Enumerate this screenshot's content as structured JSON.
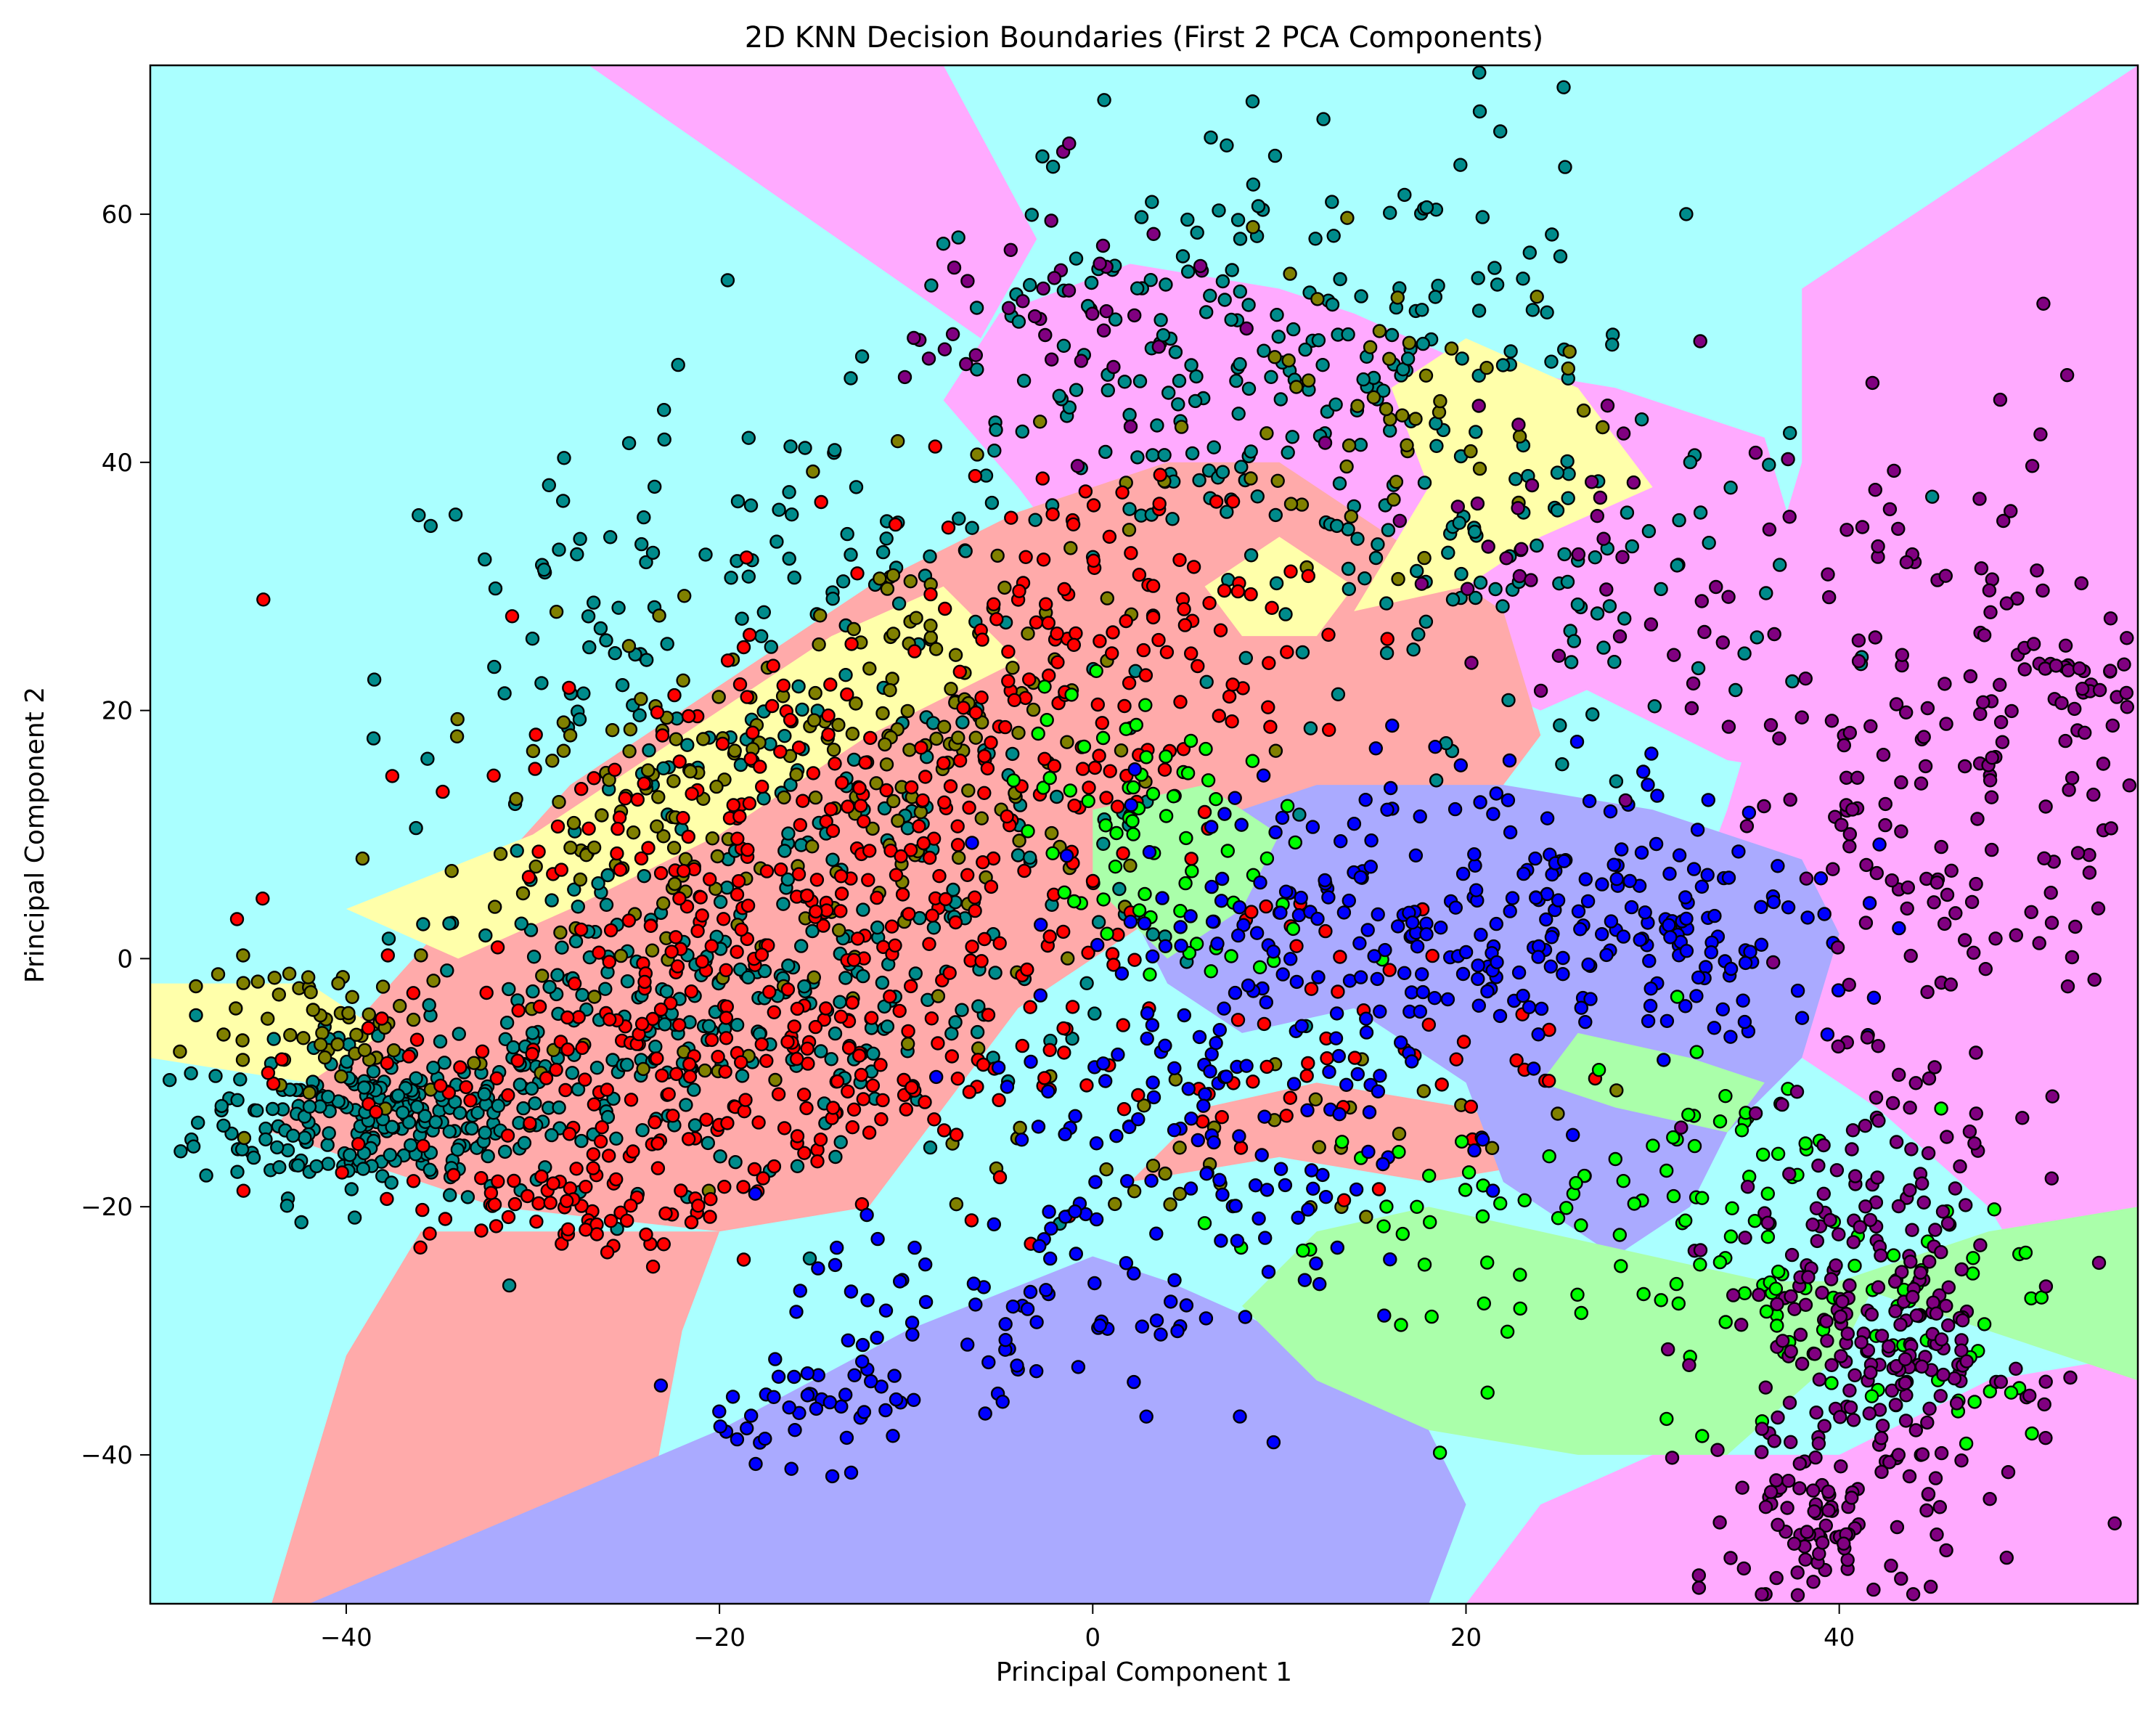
{
  "chart_data": {
    "type": "scatter",
    "title": "2D KNN Decision Boundaries (First 2 PCA Components)",
    "xlabel": "Principal Component 1",
    "ylabel": "Principal Component 2",
    "xlim": [
      -50.5,
      56.0
    ],
    "ylim": [
      -52.0,
      72.0
    ],
    "x_ticks": [
      -40,
      -20,
      0,
      20,
      40
    ],
    "y_ticks": [
      -40,
      -20,
      0,
      20,
      40,
      60
    ],
    "x_tick_labels": [
      "−40",
      "−20",
      "0",
      "20",
      "40"
    ],
    "y_tick_labels": [
      "−40",
      "−20",
      "0",
      "20",
      "40",
      "60"
    ],
    "grid": false,
    "legend": "none",
    "marker_edge_color": "#000000",
    "classes": [
      {
        "name": "class-teal",
        "point_color": "#008b8b",
        "region_color": "#aaffff"
      },
      {
        "name": "class-olive",
        "point_color": "#808000",
        "region_color": "#ffffaa"
      },
      {
        "name": "class-red",
        "point_color": "#ff0000",
        "region_color": "#ffaaaa"
      },
      {
        "name": "class-green",
        "point_color": "#00ff00",
        "region_color": "#aaffaa"
      },
      {
        "name": "class-blue",
        "point_color": "#0000ff",
        "region_color": "#aaaaff"
      },
      {
        "name": "class-purple",
        "point_color": "#800080",
        "region_color": "#ffaaff"
      }
    ],
    "regions": [
      {
        "class": "class-teal",
        "polygon": [
          [
            -50.5,
            72
          ],
          [
            56,
            72
          ],
          [
            56,
            -52
          ],
          [
            -50.5,
            -52
          ]
        ]
      },
      {
        "class": "class-purple",
        "polygon": [
          [
            -27,
            72
          ],
          [
            -8,
            72
          ],
          [
            -3,
            58
          ],
          [
            -6,
            50
          ]
        ]
      },
      {
        "class": "class-purple",
        "polygon": [
          [
            2,
            56
          ],
          [
            10,
            54
          ],
          [
            14,
            52
          ],
          [
            20,
            48
          ],
          [
            28,
            46
          ],
          [
            36,
            42
          ],
          [
            38,
            32
          ],
          [
            30,
            24
          ],
          [
            24,
            20
          ],
          [
            18,
            24
          ],
          [
            12,
            30
          ],
          [
            6,
            28
          ],
          [
            0,
            30
          ],
          [
            -4,
            38
          ],
          [
            -8,
            45
          ],
          [
            -5,
            52
          ]
        ]
      },
      {
        "class": "class-purple",
        "polygon": [
          [
            56,
            72
          ],
          [
            38,
            54
          ],
          [
            38,
            40
          ],
          [
            36,
            30
          ],
          [
            26,
            22
          ],
          [
            34,
            16
          ],
          [
            42,
            14
          ],
          [
            48,
            8
          ],
          [
            56,
            8
          ]
        ]
      },
      {
        "class": "class-purple",
        "polygon": [
          [
            38,
            32
          ],
          [
            56,
            50
          ],
          [
            56,
            -20
          ],
          [
            50,
            -25
          ],
          [
            48,
            -20
          ],
          [
            42,
            -12
          ],
          [
            36,
            -6
          ],
          [
            32,
            4
          ],
          [
            34,
            12
          ]
        ]
      },
      {
        "class": "class-purple",
        "polygon": [
          [
            20,
            -52
          ],
          [
            56,
            -52
          ],
          [
            56,
            -32
          ],
          [
            48,
            -34
          ],
          [
            40,
            -40
          ],
          [
            30,
            -40
          ],
          [
            24,
            -44
          ]
        ]
      },
      {
        "class": "class-red",
        "polygon": [
          [
            -44,
            -52
          ],
          [
            -30,
            -52
          ],
          [
            -24,
            -46
          ],
          [
            -22,
            -30
          ],
          [
            -20,
            -22
          ],
          [
            -28,
            -22
          ],
          [
            -36,
            -22
          ],
          [
            -40,
            -32
          ]
        ]
      },
      {
        "class": "class-red",
        "polygon": [
          [
            -32,
            -20
          ],
          [
            -44,
            -14
          ],
          [
            -40,
            -6
          ],
          [
            -34,
            4
          ],
          [
            -28,
            14
          ],
          [
            -20,
            22
          ],
          [
            -12,
            30
          ],
          [
            -4,
            36
          ],
          [
            4,
            40
          ],
          [
            10,
            40
          ],
          [
            16,
            34
          ],
          [
            22,
            28
          ],
          [
            24,
            18
          ],
          [
            20,
            10
          ],
          [
            12,
            8
          ],
          [
            4,
            4
          ],
          [
            -4,
            -4
          ],
          [
            -8,
            -12
          ],
          [
            -12,
            -20
          ],
          [
            -20,
            -22
          ]
        ]
      },
      {
        "class": "class-red",
        "polygon": [
          [
            2,
            -18
          ],
          [
            10,
            -16
          ],
          [
            18,
            -18
          ],
          [
            26,
            -16
          ],
          [
            20,
            -12
          ],
          [
            12,
            -10
          ],
          [
            6,
            -12
          ]
        ]
      },
      {
        "class": "class-olive",
        "polygon": [
          [
            -50.5,
            -2
          ],
          [
            -42,
            -2
          ],
          [
            -38,
            -6
          ],
          [
            -42,
            -10
          ],
          [
            -50.5,
            -8
          ]
        ]
      },
      {
        "class": "class-olive",
        "polygon": [
          [
            -40,
            4
          ],
          [
            -30,
            10
          ],
          [
            -22,
            18
          ],
          [
            -14,
            26
          ],
          [
            -8,
            30
          ],
          [
            -4,
            24
          ],
          [
            -12,
            18
          ],
          [
            -20,
            10
          ],
          [
            -28,
            4
          ],
          [
            -34,
            0
          ]
        ]
      },
      {
        "class": "class-olive",
        "polygon": [
          [
            14,
            28
          ],
          [
            18,
            38
          ],
          [
            16,
            46
          ],
          [
            20,
            50
          ],
          [
            26,
            46
          ],
          [
            30,
            38
          ],
          [
            24,
            34
          ],
          [
            20,
            30
          ]
        ]
      },
      {
        "class": "class-olive",
        "polygon": [
          [
            6,
            30
          ],
          [
            10,
            34
          ],
          [
            14,
            30
          ],
          [
            12,
            26
          ],
          [
            8,
            26
          ]
        ]
      },
      {
        "class": "class-olive",
        "polygon": [
          [
            18,
            -4
          ],
          [
            24,
            -6
          ],
          [
            28,
            -4
          ],
          [
            26,
            0
          ],
          [
            20,
            0
          ]
        ]
      },
      {
        "class": "class-blue",
        "polygon": [
          [
            -42,
            -52
          ],
          [
            -20,
            -38
          ],
          [
            -10,
            -30
          ],
          [
            0,
            -24
          ],
          [
            4,
            -26
          ],
          [
            10,
            -30
          ],
          [
            14,
            -32
          ],
          [
            18,
            -38
          ],
          [
            20,
            -44
          ],
          [
            18,
            -52
          ]
        ]
      },
      {
        "class": "class-blue",
        "polygon": [
          [
            4,
            10
          ],
          [
            12,
            14
          ],
          [
            22,
            14
          ],
          [
            30,
            12
          ],
          [
            38,
            8
          ],
          [
            40,
            2
          ],
          [
            38,
            -8
          ],
          [
            34,
            -14
          ],
          [
            32,
            -20
          ],
          [
            28,
            -24
          ],
          [
            22,
            -18
          ],
          [
            20,
            -10
          ],
          [
            14,
            -4
          ],
          [
            8,
            -6
          ],
          [
            4,
            -2
          ],
          [
            2,
            4
          ]
        ]
      },
      {
        "class": "class-green",
        "polygon": [
          [
            12,
            -34
          ],
          [
            18,
            -38
          ],
          [
            26,
            -40
          ],
          [
            34,
            -40
          ],
          [
            40,
            -32
          ],
          [
            42,
            -26
          ],
          [
            36,
            -26
          ],
          [
            30,
            -24
          ],
          [
            24,
            -22
          ],
          [
            18,
            -20
          ],
          [
            12,
            -22
          ],
          [
            8,
            -28
          ]
        ]
      },
      {
        "class": "class-green",
        "polygon": [
          [
            40,
            -26
          ],
          [
            48,
            -22
          ],
          [
            56,
            -20
          ],
          [
            56,
            -34
          ],
          [
            48,
            -30
          ]
        ]
      },
      {
        "class": "class-green",
        "polygon": [
          [
            0,
            12
          ],
          [
            6,
            14
          ],
          [
            10,
            10
          ],
          [
            8,
            4
          ],
          [
            4,
            0
          ],
          [
            0,
            6
          ]
        ]
      },
      {
        "class": "class-green",
        "polygon": [
          [
            26,
            -6
          ],
          [
            32,
            -8
          ],
          [
            36,
            -10
          ],
          [
            34,
            -14
          ],
          [
            28,
            -12
          ],
          [
            24,
            -10
          ]
        ]
      }
    ],
    "clusters": [
      {
        "class": "class-teal",
        "n": 240,
        "center": [
          -38,
          -13
        ],
        "spread": [
          5,
          3
        ]
      },
      {
        "class": "class-teal",
        "n": 220,
        "center": [
          -22,
          -6
        ],
        "spread": [
          9,
          6
        ]
      },
      {
        "class": "class-teal",
        "n": 120,
        "center": [
          -10,
          8
        ],
        "spread": [
          9,
          8
        ]
      },
      {
        "class": "class-teal",
        "n": 70,
        "center": [
          -26,
          22
        ],
        "spread": [
          6,
          12
        ]
      },
      {
        "class": "class-teal",
        "n": 140,
        "center": [
          4,
          46
        ],
        "spread": [
          9,
          8
        ]
      },
      {
        "class": "class-teal",
        "n": 110,
        "center": [
          14,
          50
        ],
        "spread": [
          8,
          10
        ]
      },
      {
        "class": "class-teal",
        "n": 90,
        "center": [
          24,
          30
        ],
        "spread": [
          8,
          6
        ]
      },
      {
        "class": "class-teal",
        "n": 40,
        "center": [
          -15,
          33
        ],
        "spread": [
          5,
          5
        ]
      },
      {
        "class": "class-olive",
        "n": 60,
        "center": [
          -40,
          -6
        ],
        "spread": [
          4,
          3
        ]
      },
      {
        "class": "class-olive",
        "n": 160,
        "center": [
          -20,
          10
        ],
        "spread": [
          8,
          8
        ]
      },
      {
        "class": "class-olive",
        "n": 90,
        "center": [
          -8,
          20
        ],
        "spread": [
          6,
          8
        ]
      },
      {
        "class": "class-olive",
        "n": 50,
        "center": [
          16,
          44
        ],
        "spread": [
          5,
          6
        ]
      },
      {
        "class": "class-olive",
        "n": 40,
        "center": [
          6,
          -14
        ],
        "spread": [
          10,
          4
        ]
      },
      {
        "class": "class-red",
        "n": 250,
        "center": [
          -20,
          -8
        ],
        "spread": [
          10,
          7
        ]
      },
      {
        "class": "class-red",
        "n": 200,
        "center": [
          -14,
          10
        ],
        "spread": [
          9,
          9
        ]
      },
      {
        "class": "class-red",
        "n": 130,
        "center": [
          0,
          26
        ],
        "spread": [
          6,
          7
        ]
      },
      {
        "class": "class-red",
        "n": 60,
        "center": [
          -28,
          -20
        ],
        "spread": [
          4,
          2
        ]
      },
      {
        "class": "class-red",
        "n": 50,
        "center": [
          12,
          -6
        ],
        "spread": [
          6,
          6
        ]
      },
      {
        "class": "class-green",
        "n": 40,
        "center": [
          2,
          14
        ],
        "spread": [
          3,
          4
        ]
      },
      {
        "class": "class-green",
        "n": 50,
        "center": [
          20,
          -22
        ],
        "spread": [
          7,
          6
        ]
      },
      {
        "class": "class-green",
        "n": 60,
        "center": [
          34,
          -20
        ],
        "spread": [
          4,
          8
        ]
      },
      {
        "class": "class-green",
        "n": 40,
        "center": [
          44,
          -30
        ],
        "spread": [
          4,
          5
        ]
      },
      {
        "class": "class-green",
        "n": 30,
        "center": [
          6,
          4
        ],
        "spread": [
          4,
          5
        ]
      },
      {
        "class": "class-blue",
        "n": 240,
        "center": [
          20,
          4
        ],
        "spread": [
          9,
          6
        ]
      },
      {
        "class": "class-blue",
        "n": 120,
        "center": [
          6,
          -14
        ],
        "spread": [
          6,
          8
        ]
      },
      {
        "class": "class-blue",
        "n": 70,
        "center": [
          -6,
          -30
        ],
        "spread": [
          6,
          5
        ]
      },
      {
        "class": "class-blue",
        "n": 40,
        "center": [
          -14,
          -36
        ],
        "spread": [
          3,
          2
        ]
      },
      {
        "class": "class-blue",
        "n": 60,
        "center": [
          32,
          0
        ],
        "spread": [
          5,
          5
        ]
      },
      {
        "class": "class-purple",
        "n": 280,
        "center": [
          42,
          -30
        ],
        "spread": [
          4,
          9
        ]
      },
      {
        "class": "class-purple",
        "n": 180,
        "center": [
          46,
          14
        ],
        "spread": [
          6,
          14
        ]
      },
      {
        "class": "class-purple",
        "n": 50,
        "center": [
          38,
          -46
        ],
        "spread": [
          2,
          4
        ]
      },
      {
        "class": "class-purple",
        "n": 40,
        "center": [
          -2,
          52
        ],
        "spread": [
          4,
          5
        ]
      },
      {
        "class": "class-purple",
        "n": 40,
        "center": [
          26,
          32
        ],
        "spread": [
          6,
          8
        ]
      },
      {
        "class": "class-purple",
        "n": 30,
        "center": [
          52,
          22
        ],
        "spread": [
          2,
          3
        ]
      }
    ]
  }
}
